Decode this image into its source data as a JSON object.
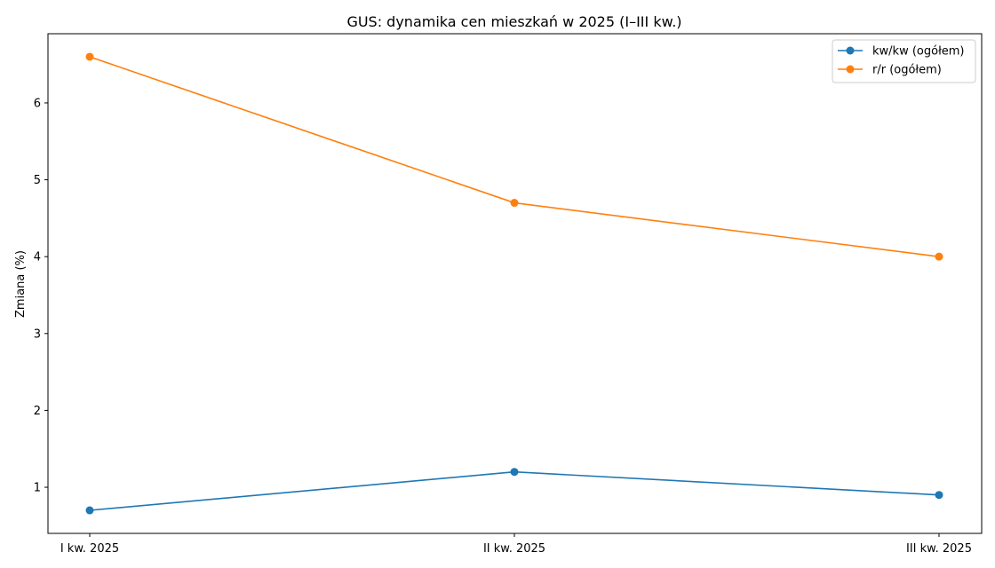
{
  "chart_data": {
    "type": "line",
    "title": "GUS: dynamika cen mieszkań w 2025 (I–III kw.)",
    "xlabel": "",
    "ylabel": "Zmiana (%)",
    "categories": [
      "I kw. 2025",
      "II kw. 2025",
      "III kw. 2025"
    ],
    "ylim": [
      0.4,
      6.9
    ],
    "yticks": [
      1,
      2,
      3,
      4,
      5,
      6
    ],
    "grid": false,
    "legend_position": "top-right",
    "series": [
      {
        "name": "kw/kw (ogółem)",
        "color": "#1f77b4",
        "values": [
          0.7,
          1.2,
          0.9
        ]
      },
      {
        "name": "r/r (ogółem)",
        "color": "#ff7f0e",
        "values": [
          6.6,
          4.7,
          4.0
        ]
      }
    ]
  }
}
